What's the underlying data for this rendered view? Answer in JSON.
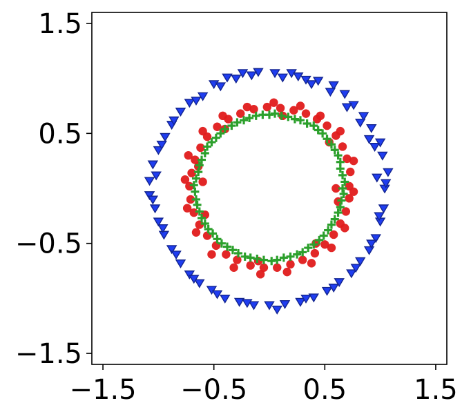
{
  "chart_data": {
    "type": "scatter",
    "title": "",
    "xlabel": "",
    "ylabel": "",
    "xlim": [
      -1.6,
      1.6
    ],
    "ylim": [
      -1.6,
      1.6
    ],
    "grid": false,
    "legend": "none",
    "x_ticks": [
      -1.5,
      -0.5,
      0.5,
      1.5
    ],
    "x_tick_labels": [
      "−1.5",
      "−0.5",
      "0.5",
      "1.5"
    ],
    "y_ticks": [
      -1.5,
      -0.5,
      0.5,
      1.5
    ],
    "y_tick_labels": [
      "−1.5",
      "−0.5",
      "0.5",
      "1.5"
    ],
    "series": [
      {
        "marker": "triangle-down",
        "color": "#1f3df0",
        "points": [
          [
            1.04,
            0.0
          ],
          [
            1.07,
            0.15
          ],
          [
            1.02,
            0.3
          ],
          [
            1.0,
            0.42
          ],
          [
            0.92,
            0.55
          ],
          [
            0.85,
            0.66
          ],
          [
            0.76,
            0.76
          ],
          [
            0.68,
            0.86
          ],
          [
            0.58,
            0.94
          ],
          [
            0.44,
            0.98
          ],
          [
            0.33,
            0.99
          ],
          [
            0.2,
            1.05
          ],
          [
            0.05,
            1.05
          ],
          [
            -0.1,
            1.06
          ],
          [
            -0.24,
            1.05
          ],
          [
            -0.38,
            1.01
          ],
          [
            -0.5,
            0.95
          ],
          [
            -0.6,
            0.84
          ],
          [
            -0.72,
            0.78
          ],
          [
            -0.8,
            0.7
          ],
          [
            -0.88,
            0.58
          ],
          [
            -0.94,
            0.47
          ],
          [
            -1.0,
            0.35
          ],
          [
            -1.05,
            0.22
          ],
          [
            -1.08,
            0.07
          ],
          [
            -1.08,
            -0.06
          ],
          [
            -1.03,
            -0.18
          ],
          [
            -1.0,
            -0.3
          ],
          [
            -0.95,
            -0.42
          ],
          [
            -0.88,
            -0.55
          ],
          [
            -0.8,
            -0.68
          ],
          [
            -0.72,
            -0.78
          ],
          [
            -0.63,
            -0.86
          ],
          [
            -0.52,
            -0.92
          ],
          [
            -0.4,
            -1.0
          ],
          [
            -0.27,
            -1.03
          ],
          [
            -0.14,
            -1.06
          ],
          [
            0.0,
            -1.06
          ],
          [
            0.14,
            -1.05
          ],
          [
            0.28,
            -1.03
          ],
          [
            0.4,
            -0.99
          ],
          [
            0.52,
            -0.93
          ],
          [
            0.63,
            -0.85
          ],
          [
            0.74,
            -0.77
          ],
          [
            0.82,
            -0.66
          ],
          [
            0.9,
            -0.56
          ],
          [
            0.96,
            -0.45
          ],
          [
            1.0,
            -0.3
          ],
          [
            1.03,
            -0.18
          ],
          [
            0.97,
            0.1
          ],
          [
            0.95,
            0.38
          ],
          [
            0.82,
            0.6
          ],
          [
            0.7,
            0.74
          ],
          [
            0.55,
            0.88
          ],
          [
            0.38,
            0.95
          ],
          [
            0.26,
            1.02
          ],
          [
            -0.3,
            1.0
          ],
          [
            -0.44,
            0.93
          ],
          [
            -0.66,
            0.8
          ],
          [
            -0.86,
            0.62
          ],
          [
            -0.97,
            0.4
          ],
          [
            -1.02,
            0.12
          ],
          [
            -1.05,
            -0.1
          ],
          [
            -0.96,
            -0.36
          ],
          [
            -0.84,
            -0.6
          ],
          [
            -0.68,
            -0.82
          ],
          [
            -0.47,
            -0.96
          ],
          [
            -0.2,
            -1.04
          ],
          [
            0.07,
            -1.1
          ],
          [
            0.33,
            -1.0
          ],
          [
            0.58,
            -0.9
          ],
          [
            0.78,
            -0.72
          ],
          [
            0.92,
            -0.5
          ],
          [
            0.99,
            -0.25
          ],
          [
            1.05,
            0.05
          ],
          [
            0.9,
            0.45
          ],
          [
            -0.16,
            1.03
          ],
          [
            0.12,
            1.01
          ]
        ]
      },
      {
        "marker": "circle",
        "color": "#e01b1b",
        "points": [
          [
            0.72,
            0.02
          ],
          [
            0.73,
            0.15
          ],
          [
            0.7,
            0.27
          ],
          [
            0.66,
            0.38
          ],
          [
            0.6,
            0.48
          ],
          [
            0.52,
            0.57
          ],
          [
            0.43,
            0.63
          ],
          [
            0.33,
            0.68
          ],
          [
            0.22,
            0.71
          ],
          [
            0.1,
            0.73
          ],
          [
            -0.02,
            0.74
          ],
          [
            -0.14,
            0.72
          ],
          [
            -0.26,
            0.68
          ],
          [
            -0.37,
            0.63
          ],
          [
            -0.47,
            0.56
          ],
          [
            -0.56,
            0.47
          ],
          [
            -0.62,
            0.37
          ],
          [
            -0.67,
            0.26
          ],
          [
            -0.7,
            0.14
          ],
          [
            -0.72,
            0.02
          ],
          [
            -0.71,
            -0.1
          ],
          [
            -0.68,
            -0.22
          ],
          [
            -0.63,
            -0.33
          ],
          [
            -0.56,
            -0.43
          ],
          [
            -0.48,
            -0.52
          ],
          [
            -0.39,
            -0.6
          ],
          [
            -0.29,
            -0.65
          ],
          [
            -0.17,
            -0.7
          ],
          [
            -0.05,
            -0.72
          ],
          [
            0.07,
            -0.72
          ],
          [
            0.19,
            -0.69
          ],
          [
            0.3,
            -0.65
          ],
          [
            0.41,
            -0.59
          ],
          [
            0.5,
            -0.51
          ],
          [
            0.58,
            -0.42
          ],
          [
            0.64,
            -0.32
          ],
          [
            0.69,
            -0.21
          ],
          [
            0.72,
            -0.09
          ],
          [
            0.76,
            -0.03
          ],
          [
            0.76,
            0.25
          ],
          [
            0.64,
            0.52
          ],
          [
            0.46,
            0.66
          ],
          [
            0.28,
            0.75
          ],
          [
            0.04,
            0.78
          ],
          [
            -0.2,
            0.74
          ],
          [
            -0.42,
            0.66
          ],
          [
            -0.6,
            0.52
          ],
          [
            -0.73,
            0.3
          ],
          [
            -0.76,
            0.08
          ],
          [
            -0.74,
            -0.18
          ],
          [
            -0.66,
            -0.4
          ],
          [
            -0.52,
            -0.6
          ],
          [
            -0.32,
            -0.72
          ],
          [
            -0.08,
            -0.78
          ],
          [
            0.16,
            -0.76
          ],
          [
            0.38,
            -0.68
          ],
          [
            0.56,
            -0.54
          ],
          [
            0.68,
            -0.36
          ],
          [
            0.6,
            0.0
          ],
          [
            0.62,
            -0.12
          ],
          [
            -0.6,
            0.06
          ],
          [
            -0.64,
            0.2
          ],
          [
            -0.58,
            -0.24
          ],
          [
            0.12,
            0.66
          ],
          [
            -0.1,
            -0.66
          ],
          [
            0.42,
            -0.5
          ],
          [
            -0.4,
            0.54
          ],
          [
            0.54,
            0.42
          ]
        ]
      },
      {
        "marker": "plus",
        "color": "#2ca02c",
        "points": [
          [
            0.66,
            0.0
          ],
          [
            0.66,
            0.12
          ],
          [
            0.64,
            0.24
          ],
          [
            0.59,
            0.35
          ],
          [
            0.52,
            0.45
          ],
          [
            0.44,
            0.53
          ],
          [
            0.34,
            0.59
          ],
          [
            0.23,
            0.63
          ],
          [
            0.11,
            0.66
          ],
          [
            0.0,
            0.67
          ],
          [
            -0.12,
            0.66
          ],
          [
            -0.23,
            0.62
          ],
          [
            -0.34,
            0.57
          ],
          [
            -0.44,
            0.5
          ],
          [
            -0.52,
            0.42
          ],
          [
            -0.58,
            0.32
          ],
          [
            -0.63,
            0.21
          ],
          [
            -0.66,
            0.09
          ],
          [
            -0.67,
            -0.03
          ],
          [
            -0.65,
            -0.15
          ],
          [
            -0.61,
            -0.27
          ],
          [
            -0.55,
            -0.37
          ],
          [
            -0.47,
            -0.46
          ],
          [
            -0.38,
            -0.53
          ],
          [
            -0.28,
            -0.59
          ],
          [
            -0.17,
            -0.63
          ],
          [
            -0.05,
            -0.65
          ],
          [
            0.07,
            -0.65
          ],
          [
            0.19,
            -0.62
          ],
          [
            0.3,
            -0.58
          ],
          [
            0.4,
            -0.51
          ],
          [
            0.49,
            -0.43
          ],
          [
            0.56,
            -0.33
          ],
          [
            0.62,
            -0.22
          ],
          [
            0.65,
            -0.11
          ],
          [
            0.68,
            0.06
          ],
          [
            0.62,
            0.3
          ],
          [
            0.48,
            0.5
          ],
          [
            0.28,
            0.62
          ],
          [
            0.05,
            0.68
          ],
          [
            -0.18,
            0.64
          ],
          [
            -0.4,
            0.54
          ],
          [
            -0.56,
            0.38
          ],
          [
            -0.64,
            0.15
          ],
          [
            -0.66,
            -0.1
          ],
          [
            -0.58,
            -0.32
          ],
          [
            -0.43,
            -0.5
          ],
          [
            -0.22,
            -0.62
          ],
          [
            0.02,
            -0.66
          ],
          [
            0.25,
            -0.6
          ],
          [
            0.45,
            -0.47
          ],
          [
            0.59,
            -0.28
          ],
          [
            0.67,
            -0.05
          ],
          [
            0.64,
            0.18
          ],
          [
            0.56,
            0.4
          ],
          [
            0.4,
            0.57
          ],
          [
            0.17,
            0.65
          ],
          [
            -0.06,
            0.67
          ],
          [
            -0.29,
            0.6
          ],
          [
            -0.48,
            0.46
          ],
          [
            -0.61,
            0.26
          ],
          [
            -0.68,
            0.03
          ],
          [
            -0.63,
            -0.21
          ],
          [
            -0.51,
            -0.41
          ],
          [
            -0.33,
            -0.56
          ],
          [
            -0.11,
            -0.64
          ],
          [
            0.13,
            -0.63
          ],
          [
            0.35,
            -0.54
          ],
          [
            0.53,
            -0.38
          ],
          [
            0.64,
            -0.17
          ]
        ]
      }
    ]
  }
}
